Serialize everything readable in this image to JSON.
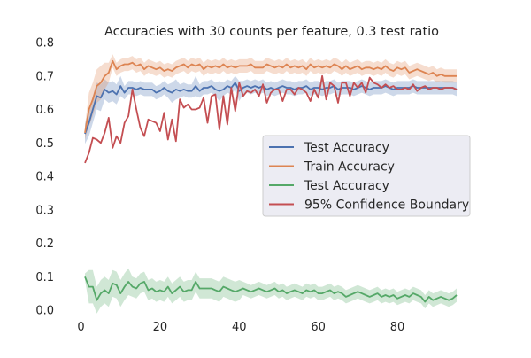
{
  "chart_data": {
    "type": "line",
    "title": "Accuracies with 30 counts per feature, 0.3 test ratio",
    "xlabel": "",
    "ylabel": "",
    "xlim": [
      -3.7,
      99.7
    ],
    "ylim": [
      0.0,
      0.8
    ],
    "xticks": [
      0,
      20,
      40,
      60,
      80
    ],
    "yticks": [
      0.0,
      0.1,
      0.2,
      0.3,
      0.4,
      0.5,
      0.6,
      0.7,
      0.8
    ],
    "grid": false,
    "legend_position": "center-right",
    "x": [
      1,
      2,
      3,
      4,
      5,
      6,
      7,
      8,
      9,
      10,
      11,
      12,
      13,
      14,
      15,
      16,
      17,
      18,
      19,
      20,
      21,
      22,
      23,
      24,
      25,
      26,
      27,
      28,
      29,
      30,
      31,
      32,
      33,
      34,
      35,
      36,
      37,
      38,
      39,
      40,
      41,
      42,
      43,
      44,
      45,
      46,
      47,
      48,
      49,
      50,
      51,
      52,
      53,
      54,
      55,
      56,
      57,
      58,
      59,
      60,
      61,
      62,
      63,
      64,
      65,
      66,
      67,
      68,
      69,
      70,
      71,
      72,
      73,
      74,
      75,
      76,
      77,
      78,
      79,
      80,
      81,
      82,
      83,
      84,
      85,
      86,
      87,
      88,
      89,
      90,
      91,
      92,
      93,
      94,
      95
    ],
    "series": [
      {
        "name": "Test Accuracy",
        "color": "#4c72b0",
        "values": [
          0.527,
          0.56,
          0.6,
          0.64,
          0.635,
          0.66,
          0.65,
          0.655,
          0.645,
          0.67,
          0.65,
          0.665,
          0.665,
          0.66,
          0.665,
          0.66,
          0.66,
          0.66,
          0.65,
          0.655,
          0.665,
          0.655,
          0.65,
          0.66,
          0.655,
          0.66,
          0.655,
          0.655,
          0.67,
          0.655,
          0.665,
          0.665,
          0.67,
          0.66,
          0.655,
          0.66,
          0.67,
          0.665,
          0.68,
          0.655,
          0.665,
          0.67,
          0.665,
          0.67,
          0.665,
          0.67,
          0.66,
          0.665,
          0.66,
          0.665,
          0.67,
          0.665,
          0.665,
          0.66,
          0.665,
          0.665,
          0.67,
          0.66,
          0.665,
          0.665,
          0.66,
          0.665,
          0.665,
          0.67,
          0.66,
          0.665,
          0.665,
          0.665,
          0.66,
          0.665,
          0.67,
          0.665,
          0.66,
          0.665,
          0.665,
          0.665,
          0.67,
          0.665,
          0.66,
          0.665,
          0.665,
          0.665,
          0.665,
          0.67,
          0.665,
          0.665,
          0.665,
          0.665,
          0.665,
          0.665,
          0.665,
          0.665,
          0.665,
          0.665,
          0.66
        ],
        "band": [
          0.03,
          0.04,
          0.04,
          0.04,
          0.04,
          0.03,
          0.03,
          0.03,
          0.03,
          0.03,
          0.02,
          0.02,
          0.02,
          0.02,
          0.02,
          0.02,
          0.02,
          0.02,
          0.02,
          0.02,
          0.02,
          0.02,
          0.03,
          0.03,
          0.02,
          0.02,
          0.02,
          0.02,
          0.03,
          0.02,
          0.02,
          0.02,
          0.02,
          0.02,
          0.03,
          0.02,
          0.02,
          0.02,
          0.02,
          0.03,
          0.02,
          0.02,
          0.02,
          0.02,
          0.02,
          0.02,
          0.02,
          0.02,
          0.02,
          0.02,
          0.02,
          0.02,
          0.02,
          0.02,
          0.02,
          0.02,
          0.02,
          0.02,
          0.02,
          0.02,
          0.02,
          0.02,
          0.02,
          0.02,
          0.02,
          0.02,
          0.02,
          0.02,
          0.02,
          0.02,
          0.02,
          0.02,
          0.02,
          0.02,
          0.02,
          0.02,
          0.02,
          0.02,
          0.02,
          0.02,
          0.02,
          0.02,
          0.02,
          0.02,
          0.02,
          0.02,
          0.02,
          0.02,
          0.02,
          0.02,
          0.02,
          0.02,
          0.02,
          0.02,
          0.02
        ]
      },
      {
        "name": "Train Accuracy",
        "color": "#dd8452",
        "values": [
          0.53,
          0.6,
          0.63,
          0.67,
          0.68,
          0.7,
          0.71,
          0.745,
          0.72,
          0.73,
          0.735,
          0.735,
          0.74,
          0.73,
          0.735,
          0.72,
          0.73,
          0.725,
          0.72,
          0.725,
          0.715,
          0.72,
          0.715,
          0.725,
          0.73,
          0.735,
          0.725,
          0.735,
          0.73,
          0.735,
          0.72,
          0.73,
          0.725,
          0.73,
          0.725,
          0.735,
          0.725,
          0.73,
          0.725,
          0.73,
          0.73,
          0.73,
          0.735,
          0.725,
          0.725,
          0.725,
          0.735,
          0.73,
          0.725,
          0.73,
          0.725,
          0.735,
          0.725,
          0.73,
          0.725,
          0.73,
          0.72,
          0.735,
          0.725,
          0.73,
          0.725,
          0.73,
          0.725,
          0.735,
          0.73,
          0.72,
          0.73,
          0.72,
          0.725,
          0.73,
          0.72,
          0.725,
          0.725,
          0.72,
          0.725,
          0.72,
          0.73,
          0.72,
          0.715,
          0.725,
          0.72,
          0.725,
          0.71,
          0.715,
          0.72,
          0.715,
          0.71,
          0.705,
          0.71,
          0.7,
          0.705,
          0.7,
          0.7,
          0.7,
          0.7
        ],
        "band": [
          0.02,
          0.05,
          0.05,
          0.05,
          0.05,
          0.04,
          0.03,
          0.02,
          0.02,
          0.02,
          0.02,
          0.02,
          0.02,
          0.02,
          0.02,
          0.02,
          0.02,
          0.02,
          0.02,
          0.02,
          0.02,
          0.02,
          0.02,
          0.02,
          0.02,
          0.02,
          0.02,
          0.02,
          0.02,
          0.02,
          0.02,
          0.02,
          0.02,
          0.02,
          0.02,
          0.02,
          0.02,
          0.02,
          0.02,
          0.02,
          0.02,
          0.02,
          0.02,
          0.02,
          0.02,
          0.02,
          0.02,
          0.02,
          0.02,
          0.02,
          0.02,
          0.02,
          0.02,
          0.02,
          0.02,
          0.02,
          0.02,
          0.02,
          0.02,
          0.02,
          0.02,
          0.02,
          0.02,
          0.02,
          0.02,
          0.02,
          0.02,
          0.02,
          0.02,
          0.02,
          0.02,
          0.02,
          0.02,
          0.02,
          0.02,
          0.02,
          0.02,
          0.02,
          0.02,
          0.02,
          0.02,
          0.02,
          0.02,
          0.02,
          0.02,
          0.02,
          0.02,
          0.02,
          0.02,
          0.02,
          0.02,
          0.02,
          0.02,
          0.02,
          0.02
        ]
      },
      {
        "name": "Test Accuracy",
        "color": "#55a868",
        "values": [
          0.1,
          0.07,
          0.07,
          0.03,
          0.05,
          0.06,
          0.05,
          0.08,
          0.075,
          0.05,
          0.07,
          0.085,
          0.07,
          0.065,
          0.08,
          0.085,
          0.06,
          0.065,
          0.055,
          0.06,
          0.055,
          0.07,
          0.05,
          0.06,
          0.07,
          0.055,
          0.06,
          0.06,
          0.085,
          0.065,
          0.065,
          0.065,
          0.065,
          0.06,
          0.055,
          0.07,
          0.065,
          0.06,
          0.055,
          0.06,
          0.065,
          0.06,
          0.055,
          0.06,
          0.065,
          0.06,
          0.055,
          0.06,
          0.065,
          0.055,
          0.06,
          0.05,
          0.055,
          0.06,
          0.055,
          0.05,
          0.06,
          0.055,
          0.06,
          0.05,
          0.05,
          0.055,
          0.06,
          0.05,
          0.055,
          0.05,
          0.04,
          0.045,
          0.05,
          0.055,
          0.05,
          0.045,
          0.04,
          0.045,
          0.05,
          0.04,
          0.045,
          0.04,
          0.045,
          0.035,
          0.04,
          0.045,
          0.04,
          0.05,
          0.045,
          0.04,
          0.025,
          0.04,
          0.03,
          0.035,
          0.04,
          0.035,
          0.03,
          0.035,
          0.045
        ],
        "band": [
          0.01,
          0.05,
          0.05,
          0.04,
          0.04,
          0.04,
          0.04,
          0.04,
          0.04,
          0.04,
          0.04,
          0.04,
          0.03,
          0.03,
          0.03,
          0.03,
          0.03,
          0.03,
          0.03,
          0.03,
          0.03,
          0.03,
          0.03,
          0.03,
          0.03,
          0.03,
          0.03,
          0.03,
          0.03,
          0.03,
          0.03,
          0.03,
          0.03,
          0.03,
          0.03,
          0.03,
          0.03,
          0.03,
          0.03,
          0.03,
          0.02,
          0.02,
          0.02,
          0.02,
          0.02,
          0.02,
          0.02,
          0.02,
          0.02,
          0.02,
          0.02,
          0.02,
          0.02,
          0.02,
          0.02,
          0.02,
          0.02,
          0.02,
          0.02,
          0.02,
          0.02,
          0.02,
          0.02,
          0.02,
          0.02,
          0.02,
          0.02,
          0.02,
          0.02,
          0.02,
          0.02,
          0.02,
          0.02,
          0.02,
          0.02,
          0.02,
          0.02,
          0.02,
          0.02,
          0.02,
          0.02,
          0.02,
          0.02,
          0.02,
          0.02,
          0.02,
          0.02,
          0.02,
          0.02,
          0.02,
          0.02,
          0.02,
          0.02,
          0.02,
          0.02
        ]
      },
      {
        "name": "95% Confidence Boundary",
        "color": "#c44e52",
        "values": [
          0.44,
          0.47,
          0.515,
          0.51,
          0.5,
          0.53,
          0.575,
          0.485,
          0.52,
          0.5,
          0.56,
          0.58,
          0.66,
          0.6,
          0.545,
          0.52,
          0.57,
          0.565,
          0.56,
          0.535,
          0.59,
          0.51,
          0.57,
          0.505,
          0.63,
          0.605,
          0.615,
          0.6,
          0.6,
          0.605,
          0.635,
          0.56,
          0.64,
          0.645,
          0.54,
          0.64,
          0.555,
          0.665,
          0.595,
          0.68,
          0.64,
          0.655,
          0.65,
          0.66,
          0.64,
          0.675,
          0.62,
          0.65,
          0.66,
          0.66,
          0.625,
          0.66,
          0.66,
          0.645,
          0.665,
          0.66,
          0.65,
          0.625,
          0.66,
          0.635,
          0.7,
          0.63,
          0.68,
          0.67,
          0.62,
          0.68,
          0.68,
          0.64,
          0.68,
          0.665,
          0.68,
          0.65,
          0.695,
          0.68,
          0.675,
          0.665,
          0.675,
          0.665,
          0.67,
          0.66,
          0.66,
          0.665,
          0.66,
          0.675,
          0.655,
          0.665,
          0.67,
          0.66,
          0.665,
          0.665,
          0.66,
          0.665,
          0.665,
          0.665,
          0.66
        ],
        "band": []
      }
    ]
  }
}
